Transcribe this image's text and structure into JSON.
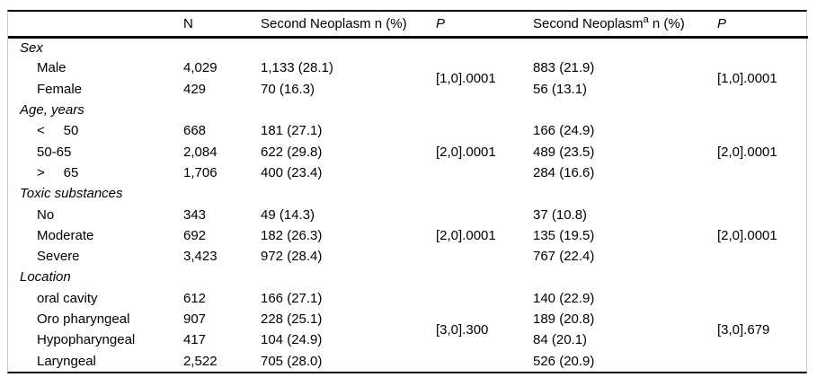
{
  "table": {
    "header": {
      "n": "N",
      "sn1": "Second Neoplasm n (%)",
      "p1": "P",
      "sn2_main": "Second Neoplasm",
      "sn2_sup": "a",
      "sn2_rest": " n (%)",
      "p2": "P"
    },
    "groups": [
      {
        "label": "Sex",
        "p1": "[1,0].0001",
        "p2": "[1,0].0001",
        "rows": [
          {
            "label": "Male",
            "n": "4,029",
            "sn1": "1,133 (28.1)",
            "sn2": "883 (21.9)"
          },
          {
            "label": "Female",
            "n": "429",
            "sn1": "70 (16.3)",
            "sn2": "56 (13.1)"
          }
        ]
      },
      {
        "label": "Age, years",
        "p1": "[2,0].0001",
        "p2": "[2,0].0001",
        "rows": [
          {
            "label": "<     50",
            "n": "668",
            "sn1": "181 (27.1)",
            "sn2": "166 (24.9)"
          },
          {
            "label": "50-65",
            "n": "2,084",
            "sn1": "622 (29.8)",
            "sn2": "489 (23.5)"
          },
          {
            "label": ">     65",
            "n": "1,706",
            "sn1": "400 (23.4)",
            "sn2": "284 (16.6)"
          }
        ]
      },
      {
        "label": "Toxic substances",
        "p1": "[2,0].0001",
        "p2": "[2,0].0001",
        "rows": [
          {
            "label": "No",
            "n": "343",
            "sn1": "49 (14.3)",
            "sn2": "37 (10.8)"
          },
          {
            "label": "Moderate",
            "n": "692",
            "sn1": "182 (26.3)",
            "sn2": "135 (19.5)"
          },
          {
            "label": "Severe",
            "n": "3,423",
            "sn1": "972 (28.4)",
            "sn2": "767 (22.4)"
          }
        ]
      },
      {
        "label": "Location",
        "p1": "[3,0].300",
        "p2": "[3,0].679",
        "rows": [
          {
            "label": "oral cavity",
            "n": "612",
            "sn1": "166 (27.1)",
            "sn2": "140 (22.9)"
          },
          {
            "label": "Oro pharyngeal",
            "n": "907",
            "sn1": "228 (25.1)",
            "sn2": "189 (20.8)"
          },
          {
            "label": "Hypopharyngeal",
            "n": "417",
            "sn1": "104 (24.9)",
            "sn2": "84 (20.1)"
          },
          {
            "label": "Laryngeal",
            "n": "2,522",
            "sn1": "705 (28.0)",
            "sn2": "526 (20.9)"
          }
        ]
      }
    ]
  }
}
